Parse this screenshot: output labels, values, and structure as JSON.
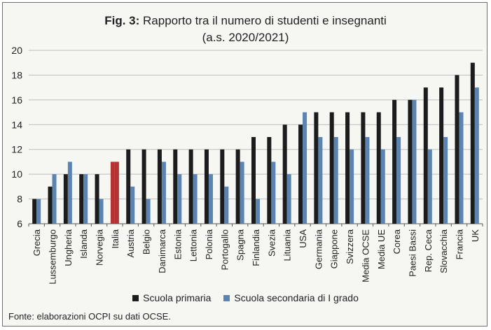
{
  "title_prefix": "Fig. 3:",
  "title_main": "Rapporto tra il numero di studenti e insegnanti",
  "subtitle": "(a.s. 2020/2021)",
  "footer": "Fonte: elaborazioni OCPI su dati OCSE.",
  "colors": {
    "primaria": "#1c1c1c",
    "secondaria": "#5b84b1",
    "italia": "#b73232",
    "grid": "#bdbdbd",
    "axis": "#555555"
  },
  "chart_data": {
    "type": "bar",
    "title": "Rapporto tra il numero di studenti e insegnanti",
    "subtitle": "(a.s. 2020/2021)",
    "ylim": [
      6,
      20
    ],
    "yticks": [
      6,
      8,
      10,
      12,
      14,
      16,
      18,
      20
    ],
    "grid": true,
    "legend_position": "bottom",
    "highlight_category": "Italia",
    "categories": [
      "Grecia",
      "Lussemburgo",
      "Ungheria",
      "Islanda",
      "Norvegia",
      "Italia",
      "Austria",
      "Belgio",
      "Danimarca",
      "Estonia",
      "Lettonia",
      "Polonia",
      "Portogallo",
      "Spagna",
      "Finlandia",
      "Svezia",
      "Lituania",
      "USA",
      "Germania",
      "Giappone",
      "Svizzera",
      "Media OCSE",
      "Media UE",
      "Corea",
      "Paesi Bassi",
      "Rep. Ceca",
      "Slovacchia",
      "Francia",
      "UK"
    ],
    "series": [
      {
        "name": "Scuola primaria",
        "values": [
          8,
          9,
          10,
          10,
          10,
          11,
          12,
          12,
          12,
          12,
          12,
          12,
          12,
          12,
          13,
          13,
          14,
          14,
          15,
          15,
          15,
          15,
          15,
          16,
          16,
          17,
          17,
          18,
          19
        ]
      },
      {
        "name": "Scuola secondaria di I grado",
        "values": [
          8,
          10,
          11,
          10,
          8,
          11,
          9,
          8,
          11,
          10,
          10,
          10,
          9,
          11,
          8,
          11,
          10,
          15,
          13,
          13,
          12,
          13,
          12,
          13,
          16,
          12,
          13,
          15,
          17
        ]
      }
    ]
  }
}
